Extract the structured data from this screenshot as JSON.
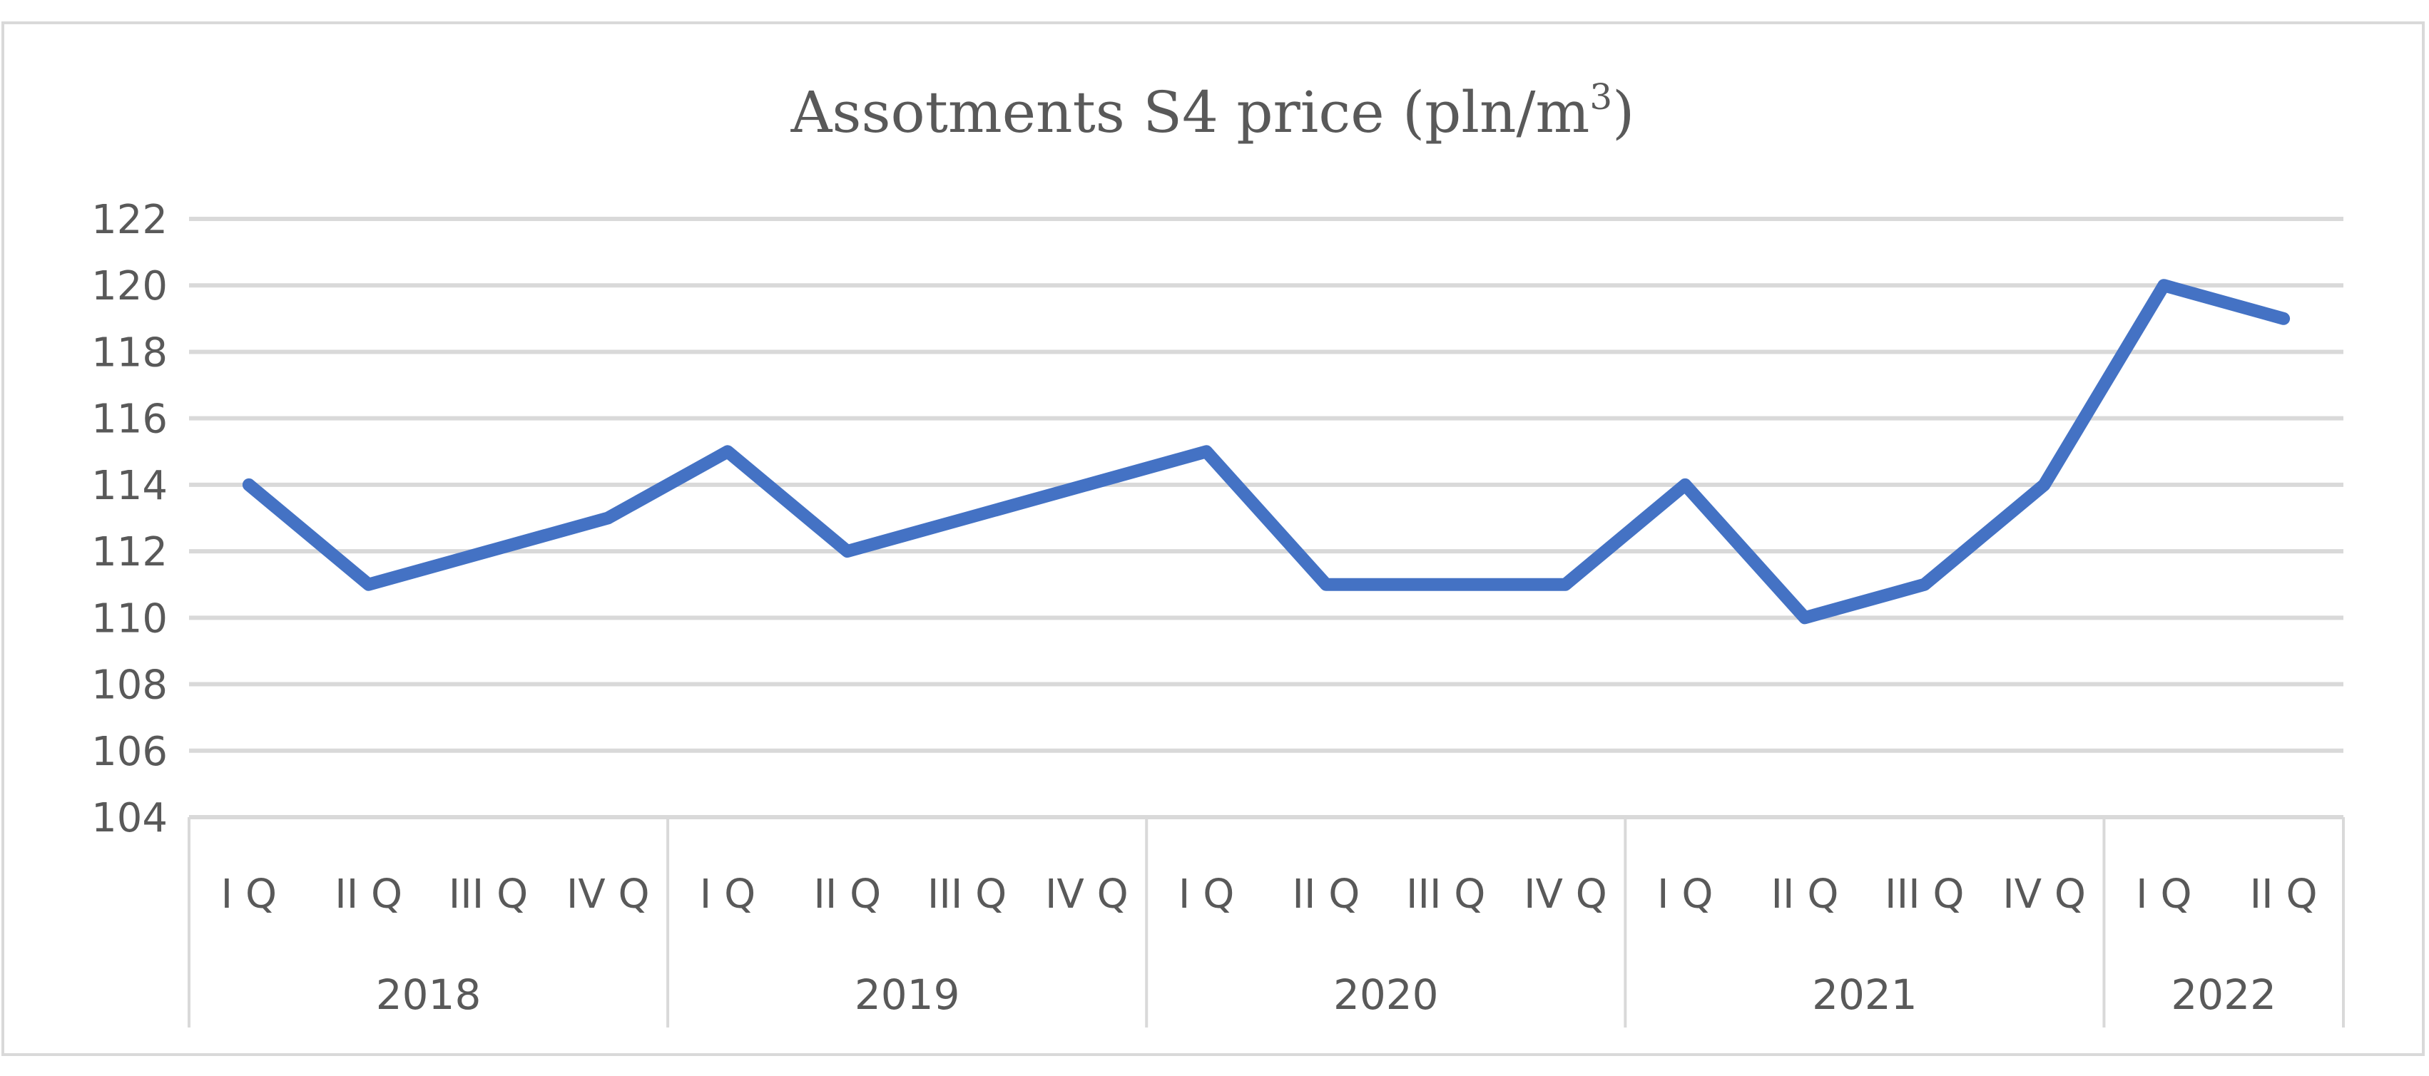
{
  "chart_data": {
    "type": "line",
    "title": "Assotments S4 price (pln/m",
    "title_superscript": "3",
    "title_suffix": ")",
    "xlabel": "",
    "ylabel": "",
    "ylim": [
      104,
      122
    ],
    "ytick_step": 2,
    "grid": true,
    "legend": "none",
    "categories": [
      "I Q",
      "II Q",
      "III Q",
      "IV Q",
      "I Q",
      "II Q",
      "III Q",
      "IV Q",
      "I Q",
      "II Q",
      "III Q",
      "IV Q",
      "I Q",
      "II Q",
      "III Q",
      "IV Q",
      "I Q",
      "II Q"
    ],
    "groups": [
      {
        "label": "2018",
        "count": 4
      },
      {
        "label": "2019",
        "count": 4
      },
      {
        "label": "2020",
        "count": 4
      },
      {
        "label": "2021",
        "count": 4
      },
      {
        "label": "2022",
        "count": 2
      }
    ],
    "series": [
      {
        "name": "Assotments S4 price",
        "color": "#4472c4",
        "values": [
          114,
          111,
          112,
          113,
          115,
          112,
          113,
          114,
          115,
          111,
          111,
          111,
          114,
          110,
          111,
          114,
          120,
          119
        ]
      }
    ]
  }
}
